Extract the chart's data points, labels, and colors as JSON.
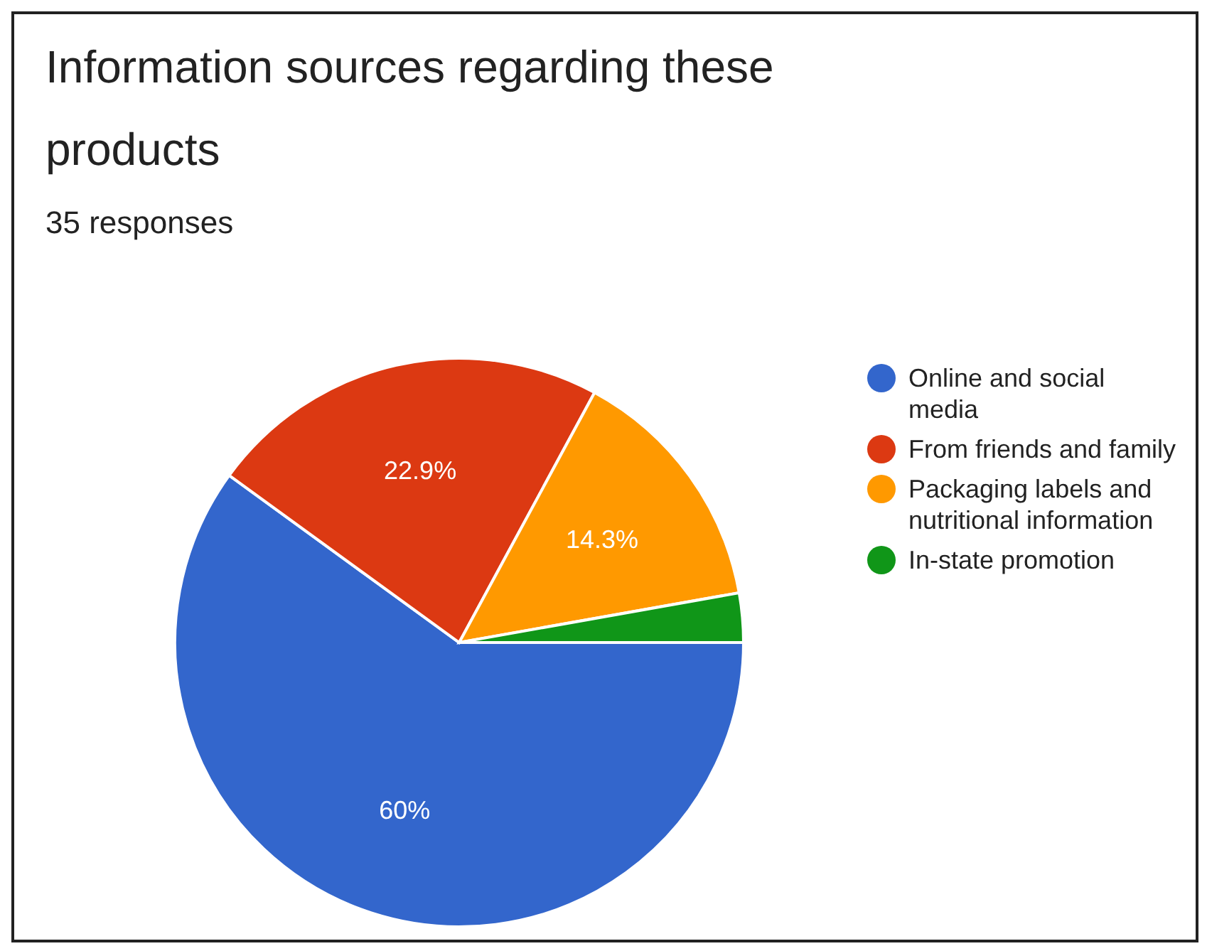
{
  "chart_data": {
    "type": "pie",
    "title": "Information sources regarding these products",
    "subtitle": "35 responses",
    "categories": [
      "Online and social media",
      "From friends and family",
      "Packaging labels and nutritional information",
      "In-state promotion"
    ],
    "values": [
      60,
      22.9,
      14.3,
      2.8
    ],
    "colors": [
      "#3366cc",
      "#dc3912",
      "#ff9900",
      "#109618"
    ],
    "value_labels": [
      "60%",
      "22.9%",
      "14.3%",
      null
    ],
    "legend": "right"
  }
}
